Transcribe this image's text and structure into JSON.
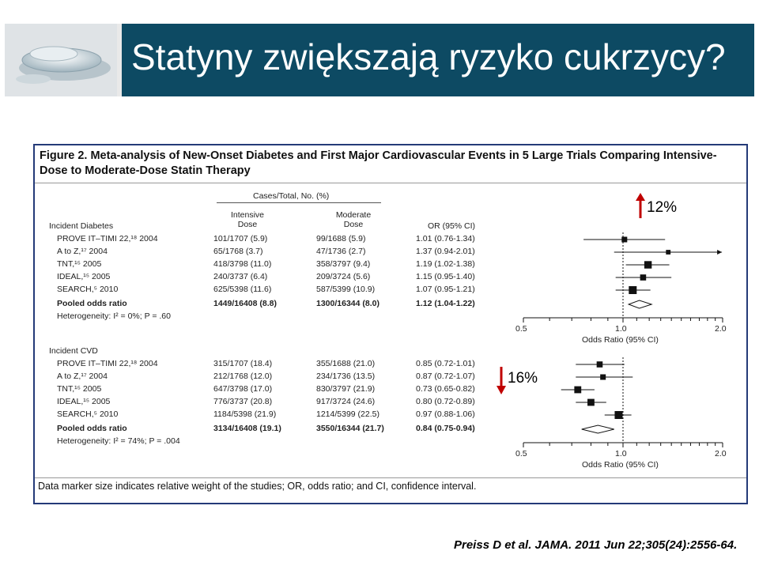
{
  "title": "Statyny zwiększają ryzyko cukrzycy?",
  "figure": {
    "title_prefix": "Figure 2.",
    "title_text": "Meta-analysis of New-Onset Diabetes and First Major Cardiovascular Events in 5 Large Trials Comparing Intensive-Dose to Moderate-Dose Statin Therapy",
    "header_cases": "Cases/Total, No. (%)",
    "header_intensive": "Intensive\nDose",
    "header_moderate": "Moderate\nDose",
    "header_or": "OR (95% CI)",
    "footnote": "Data marker size indicates relative weight of the studies; OR, odds ratio; and CI, confidence interval."
  },
  "annotation_up": "12%",
  "annotation_down": "16%",
  "citation": "Preiss D et al. JAMA. 2011 Jun 22;305(24):2556-64.",
  "chart_data": [
    {
      "type": "forest",
      "section": "Incident Diabetes",
      "xlabel": "Odds Ratio (95% CI)",
      "xlim": [
        0.5,
        2.0
      ],
      "xticks": [
        "0.5",
        "1.0",
        "2.0"
      ],
      "scale": "log",
      "rows": [
        {
          "study": "PROVE IT–TIMI 22,¹⁸ 2004",
          "intensive": "101/1707 (5.9)",
          "moderate": "99/1688 (5.9)",
          "or_text": "1.01 (0.76-1.34)",
          "or": 1.01,
          "lo": 0.76,
          "hi": 1.34,
          "weight": 0.5
        },
        {
          "study": "A to Z,¹⁷ 2004",
          "intensive": "65/1768 (3.7)",
          "moderate": "47/1736 (2.7)",
          "or_text": "1.37 (0.94-2.01)",
          "or": 1.37,
          "lo": 0.94,
          "hi": 2.01,
          "weight": 0.3
        },
        {
          "study": "TNT,¹⁵ 2005",
          "intensive": "418/3798 (11.0)",
          "moderate": "358/3797 (9.4)",
          "or_text": "1.19 (1.02-1.38)",
          "or": 1.19,
          "lo": 1.02,
          "hi": 1.38,
          "weight": 0.9
        },
        {
          "study": "IDEAL,¹⁵ 2005",
          "intensive": "240/3737 (6.4)",
          "moderate": "209/3724 (5.6)",
          "or_text": "1.15 (0.95-1.40)",
          "or": 1.15,
          "lo": 0.95,
          "hi": 1.4,
          "weight": 0.6
        },
        {
          "study": "SEARCH,⁵ 2010",
          "intensive": "625/5398 (11.6)",
          "moderate": "587/5399 (10.9)",
          "or_text": "1.07 (0.95-1.21)",
          "or": 1.07,
          "lo": 0.95,
          "hi": 1.21,
          "weight": 1.0
        }
      ],
      "pooled": {
        "label": "Pooled odds ratio",
        "intensive": "1449/16408 (8.8)",
        "moderate": "1300/16344 (8.0)",
        "or_text": "1.12 (1.04-1.22)",
        "or": 1.12,
        "lo": 1.04,
        "hi": 1.22
      },
      "heterogeneity": "Heterogeneity: I² = 0%; P = .60"
    },
    {
      "type": "forest",
      "section": "Incident CVD",
      "xlabel": "Odds Ratio (95% CI)",
      "xlim": [
        0.5,
        2.0
      ],
      "xticks": [
        "0.5",
        "1.0",
        "2.0"
      ],
      "scale": "log",
      "rows": [
        {
          "study": "PROVE IT–TIMI 22,¹⁸ 2004",
          "intensive": "315/1707 (18.4)",
          "moderate": "355/1688 (21.0)",
          "or_text": "0.85 (0.72-1.01)",
          "or": 0.85,
          "lo": 0.72,
          "hi": 1.01,
          "weight": 0.6
        },
        {
          "study": "A to Z,¹⁷ 2004",
          "intensive": "212/1768 (12.0)",
          "moderate": "234/1736 (13.5)",
          "or_text": "0.87 (0.72-1.07)",
          "or": 0.87,
          "lo": 0.72,
          "hi": 1.07,
          "weight": 0.5
        },
        {
          "study": "TNT,¹⁵ 2005",
          "intensive": "647/3798 (17.0)",
          "moderate": "830/3797 (21.9)",
          "or_text": "0.73 (0.65-0.82)",
          "or": 0.73,
          "lo": 0.65,
          "hi": 0.82,
          "weight": 0.8
        },
        {
          "study": "IDEAL,¹⁵ 2005",
          "intensive": "776/3737 (20.8)",
          "moderate": "917/3724 (24.6)",
          "or_text": "0.80 (0.72-0.89)",
          "or": 0.8,
          "lo": 0.72,
          "hi": 0.89,
          "weight": 0.8
        },
        {
          "study": "SEARCH,⁵ 2010",
          "intensive": "1184/5398 (21.9)",
          "moderate": "1214/5399 (22.5)",
          "or_text": "0.97 (0.88-1.06)",
          "or": 0.97,
          "lo": 0.88,
          "hi": 1.06,
          "weight": 1.0
        }
      ],
      "pooled": {
        "label": "Pooled odds ratio",
        "intensive": "3134/16408 (19.1)",
        "moderate": "3550/16344 (21.7)",
        "or_text": "0.84 (0.75-0.94)",
        "or": 0.84,
        "lo": 0.75,
        "hi": 0.94
      },
      "heterogeneity": "Heterogeneity: I² = 74%; P = .004"
    }
  ]
}
